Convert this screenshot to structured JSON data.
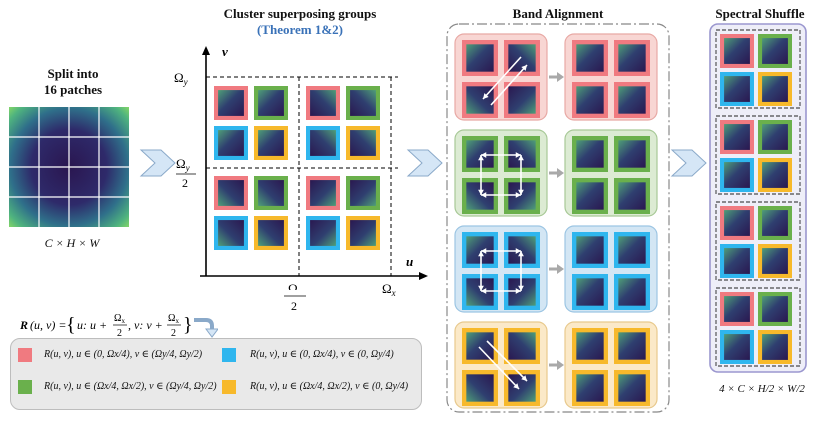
{
  "colors": {
    "red": "#f07a80",
    "green": "#6ab04c",
    "blue": "#2fb6ee",
    "yellow": "#f7b92b",
    "patch_dark": "#2b1b55",
    "patch_teal": "#2d8a86",
    "arrow_fill": "#cfe3f5",
    "gray_arrow": "#a9a9a9"
  },
  "split": {
    "title_line1": "Split into",
    "title_line2": "16 patches",
    "caption": "C × H × W"
  },
  "cluster": {
    "title": "Cluster superposing groups",
    "subtitle": "(Theorem 1&2)",
    "axis_v": "v",
    "axis_u": "u",
    "omega_y": "Ω",
    "omega_y_sub": "y",
    "omega_y_half_num": "Ω",
    "omega_y_half_sub": "y",
    "omega_y_half_den": "2",
    "omega_x_half_num": "Ω",
    "omega_x_half_sub": "x",
    "omega_x_half_den": "2",
    "omega_x": "Ω",
    "omega_x_sub": "x"
  },
  "formula": {
    "lhs": "R(u, v) = {u: u + Ω/2, v: v + Ω/2}",
    "R": "R",
    "uv": "(u, v) =",
    "open": "{",
    "u1": "u: u +",
    "v1": ", v: v +",
    "close": "}"
  },
  "legend": [
    {
      "color": "red",
      "text": "R(u, v), u ∈ (0, Ωx/4), v ∈ (Ωy/4, Ωy/2)"
    },
    {
      "color": "blue",
      "text": "R(u, v), u ∈ (0, Ωx/4), v ∈ (0, Ωy/4)"
    },
    {
      "color": "green",
      "text": "R(u, v), u ∈ (Ωx/4, Ωx/2), v ∈ (Ωy/4, Ωy/2)"
    },
    {
      "color": "yellow",
      "text": "R(u, v), u ∈ (Ωx/4, Ωx/2), v ∈ (0, Ωy/4)"
    }
  ],
  "band": {
    "title": "Band Alignment"
  },
  "shuffle": {
    "title": "Spectral Shuffle",
    "caption": "4 × C × H/2 × W/2"
  }
}
